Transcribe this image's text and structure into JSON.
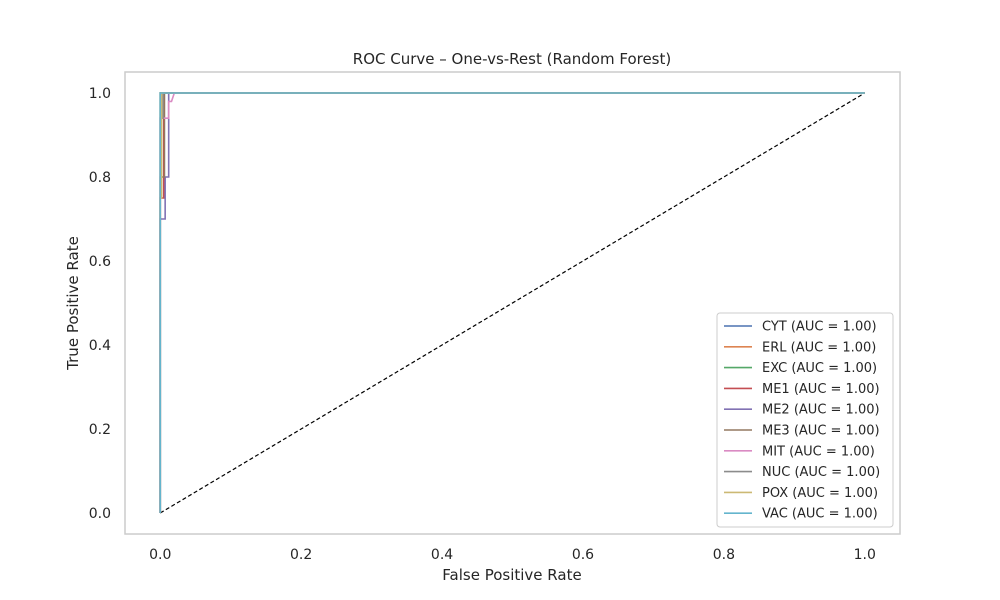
{
  "chart_data": {
    "type": "line",
    "title": "ROC Curve – One-vs-Rest (Random Forest)",
    "xlabel": "False Positive Rate",
    "ylabel": "True Positive Rate",
    "xlim": [
      -0.05,
      1.05
    ],
    "ylim": [
      -0.05,
      1.05
    ],
    "x_ticks": [
      0.0,
      0.2,
      0.4,
      0.6,
      0.8,
      1.0
    ],
    "y_ticks": [
      0.0,
      0.2,
      0.4,
      0.6,
      0.8,
      1.0
    ],
    "x_tick_labels": [
      "0.0",
      "0.2",
      "0.4",
      "0.6",
      "0.8",
      "1.0"
    ],
    "y_tick_labels": [
      "0.0",
      "0.2",
      "0.4",
      "0.6",
      "0.8",
      "1.0"
    ],
    "grid": false,
    "legend_position": "lower right",
    "series": [
      {
        "name": "CYT (AUC = 1.00)",
        "color": "#4c72b0",
        "x": [
          0.0,
          0.0,
          1.0
        ],
        "y": [
          0.0,
          1.0,
          1.0
        ]
      },
      {
        "name": "ERL (AUC = 1.00)",
        "color": "#dd8452",
        "x": [
          0.0,
          0.0,
          1.0
        ],
        "y": [
          0.0,
          1.0,
          1.0
        ]
      },
      {
        "name": "EXC (AUC = 1.00)",
        "color": "#55a868",
        "x": [
          0.0,
          0.0,
          1.0
        ],
        "y": [
          0.0,
          1.0,
          1.0
        ]
      },
      {
        "name": "ME1 (AUC = 1.00)",
        "color": "#c44e52",
        "x": [
          0.0,
          0.0,
          0.005,
          0.005,
          1.0
        ],
        "y": [
          0.0,
          0.75,
          0.75,
          1.0,
          1.0
        ]
      },
      {
        "name": "ME2 (AUC = 1.00)",
        "color": "#8172b3",
        "x": [
          0.0,
          0.0,
          0.007,
          0.007,
          0.012,
          0.012,
          1.0
        ],
        "y": [
          0.0,
          0.7,
          0.7,
          0.8,
          0.8,
          1.0,
          1.0
        ]
      },
      {
        "name": "ME3 (AUC = 1.00)",
        "color": "#937860",
        "x": [
          0.0,
          0.0,
          0.006,
          0.006,
          1.0
        ],
        "y": [
          0.0,
          0.8,
          0.8,
          1.0,
          1.0
        ]
      },
      {
        "name": "MIT (AUC = 1.00)",
        "color": "#da8bc3",
        "x": [
          0.0,
          0.0,
          0.012,
          0.012,
          0.016,
          0.02,
          0.025,
          1.0
        ],
        "y": [
          0.0,
          0.94,
          0.94,
          0.98,
          0.98,
          1.0,
          1.0,
          1.0
        ]
      },
      {
        "name": "NUC (AUC = 1.00)",
        "color": "#8c8c8c",
        "x": [
          0.0,
          0.0,
          0.004,
          0.004,
          1.0
        ],
        "y": [
          0.0,
          0.94,
          0.94,
          1.0,
          1.0
        ]
      },
      {
        "name": "POX (AUC = 1.00)",
        "color": "#ccb974",
        "x": [
          0.0,
          0.0,
          0.002,
          0.002,
          1.0
        ],
        "y": [
          0.0,
          0.75,
          0.75,
          1.0,
          1.0
        ]
      },
      {
        "name": "VAC (AUC = 1.00)",
        "color": "#64b5cd",
        "x": [
          0.0,
          0.0,
          1.0
        ],
        "y": [
          0.0,
          1.0,
          1.0
        ]
      }
    ],
    "reference_line": {
      "x": [
        0.0,
        1.0
      ],
      "y": [
        0.0,
        1.0
      ],
      "style": "dashed",
      "color": "#000000"
    }
  }
}
